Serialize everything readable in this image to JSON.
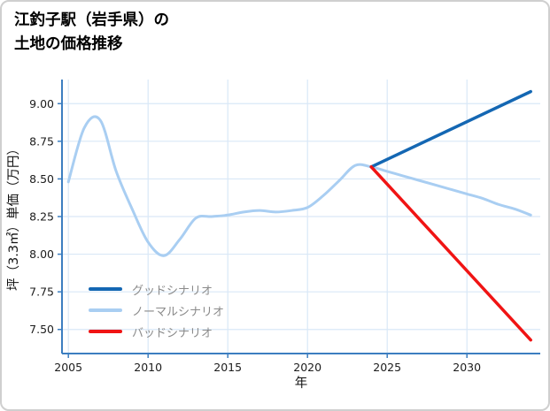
{
  "chart_data": {
    "type": "line",
    "title": "江釣子駅（岩手県）の土地の価格推移",
    "title_lines": [
      "江釣子駅（岩手県）の",
      "土地の価格推移"
    ],
    "xlabel": "年",
    "ylabel": "坪（3.3㎡）単価（万円）",
    "xlim": [
      2004.6,
      2034.6
    ],
    "ylim": [
      7.34,
      9.16
    ],
    "xticks": [
      2005,
      2010,
      2015,
      2020,
      2025,
      2030
    ],
    "xtick_labels": [
      "2005",
      "2010",
      "2015",
      "2020",
      "2025",
      "2030"
    ],
    "yticks": [
      7.5,
      7.75,
      8.0,
      8.25,
      8.5,
      8.75,
      9.0
    ],
    "ytick_labels": [
      "7.50",
      "7.75",
      "8.00",
      "8.25",
      "8.50",
      "8.75",
      "9.00"
    ],
    "grid": true,
    "legend_position": "lower left",
    "colors": {
      "axis": "#3c7ec0",
      "grid": "#d9e8f7",
      "tick_text": "#1c1c1c",
      "legend_text": "#8a8a8a",
      "background": "#ffffff",
      "border": "#cfcfcf"
    },
    "series": [
      {
        "name": "グッドシナリオ",
        "color": "#1467b3",
        "width": 3.5,
        "smooth": false,
        "x": [
          2024,
          2034
        ],
        "y": [
          8.58,
          9.08
        ]
      },
      {
        "name": "ノーマルシナリオ",
        "color": "#a9cef2",
        "width": 3,
        "smooth": true,
        "x": [
          2005,
          2006,
          2007,
          2008,
          2009,
          2010,
          2011,
          2012,
          2013,
          2014,
          2015,
          2016,
          2017,
          2018,
          2019,
          2020,
          2021,
          2022,
          2023,
          2024,
          2025,
          2026,
          2027,
          2028,
          2029,
          2030,
          2031,
          2032,
          2033,
          2034
        ],
        "y": [
          8.48,
          8.84,
          8.89,
          8.55,
          8.3,
          8.08,
          7.99,
          8.1,
          8.24,
          8.25,
          8.26,
          8.28,
          8.29,
          8.28,
          8.29,
          8.31,
          8.39,
          8.49,
          8.59,
          8.58,
          8.55,
          8.52,
          8.49,
          8.46,
          8.43,
          8.4,
          8.37,
          8.33,
          8.3,
          8.26
        ]
      },
      {
        "name": "バッドシナリオ",
        "color": "#f01414",
        "width": 3.5,
        "smooth": false,
        "x": [
          2024,
          2034
        ],
        "y": [
          8.58,
          7.43
        ]
      }
    ]
  }
}
